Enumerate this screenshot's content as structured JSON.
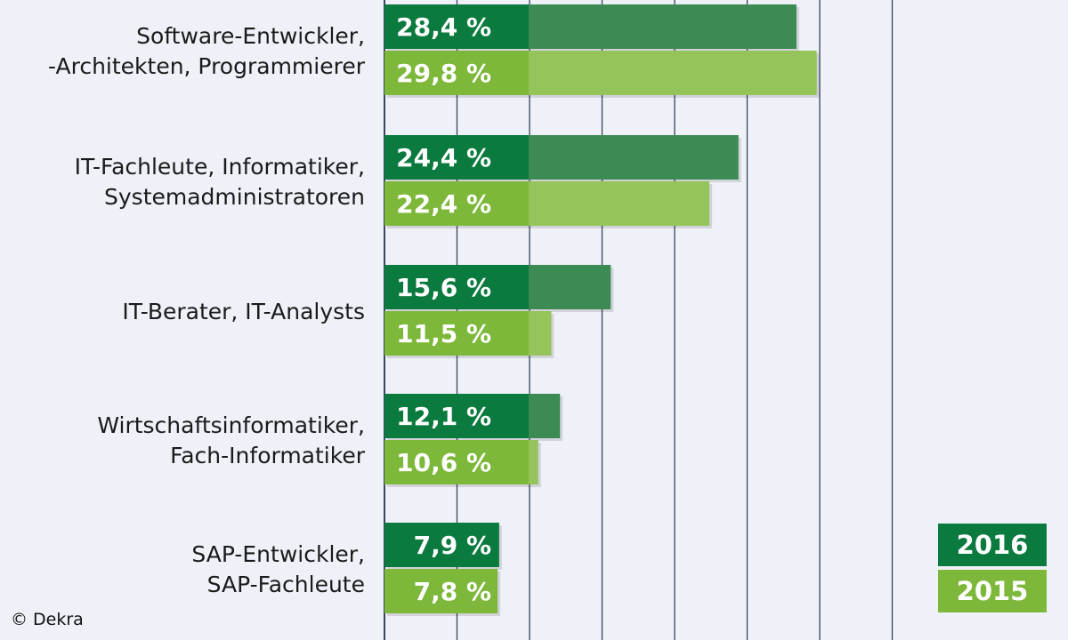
{
  "chart_data": {
    "type": "bar",
    "orientation": "horizontal",
    "categories": [
      [
        "Software-Entwickler,",
        "-Architekten, Programmierer"
      ],
      [
        "IT-Fachleute, Informatiker,",
        "Systemadministratoren"
      ],
      [
        "IT-Berater, IT-Analysts"
      ],
      [
        "Wirtschaftsinformatiker,",
        "Fach-Informatiker"
      ],
      [
        "SAP-Entwickler,",
        "SAP-Fachleute"
      ]
    ],
    "series": [
      {
        "name": "2016",
        "values": [
          28.4,
          24.4,
          15.6,
          12.1,
          7.9
        ],
        "labels": [
          "28,4 %",
          "24,4 %",
          "15,6 %",
          "12,1 %",
          "7,9 %"
        ]
      },
      {
        "name": "2015",
        "values": [
          29.8,
          22.4,
          11.5,
          10.6,
          7.8
        ],
        "labels": [
          "29,8 %",
          "22,4 %",
          "11,5 %",
          "10,6 %",
          "7,8 %"
        ]
      }
    ],
    "xlim": [
      0,
      35
    ],
    "grid": true,
    "legend_position": "bottom-right",
    "colors": {
      "2016": "#0b7a3e",
      "2016_ext": "#3c8b55",
      "2015": "#7db83a",
      "2015_ext": "#94c45a",
      "grid": "#3d4460",
      "background": "#eef1f7"
    }
  },
  "credit": "© Dekra"
}
